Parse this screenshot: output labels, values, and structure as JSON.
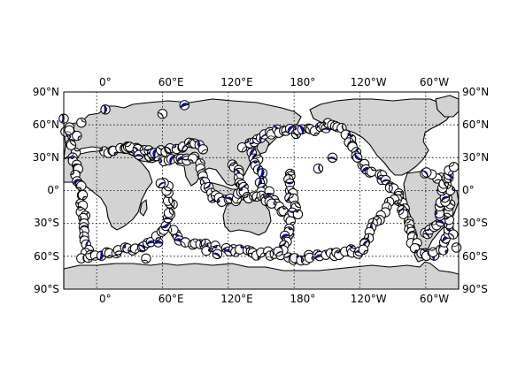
{
  "map": {
    "projection": "cylindrical",
    "center_longitude": 150,
    "lon_range": [
      -30,
      330
    ],
    "lat_range": [
      -90,
      90
    ],
    "land_color": "#d3d3d3",
    "ocean_color": "#ffffff",
    "gridlines": "dotted",
    "marker": "beach-ball",
    "marker_colors": {
      "fill": "#0000ff",
      "light": "#ffffff",
      "edge": "#000000"
    },
    "top_longitude_labels": [
      "0°",
      "60°E",
      "120°E",
      "180°",
      "120°W",
      "60°W"
    ],
    "bottom_longitude_labels": [
      "0°",
      "60°E",
      "120°E",
      "180°",
      "120°W",
      "60°W"
    ],
    "left_latitude_labels": [
      "90°N",
      "60°N",
      "30°N",
      "0°",
      "30°S",
      "60°S",
      "90°S"
    ],
    "right_latitude_labels": [
      "90°N",
      "60°N",
      "30°N",
      "0°",
      "30°S",
      "60°S",
      "90°S"
    ]
  }
}
